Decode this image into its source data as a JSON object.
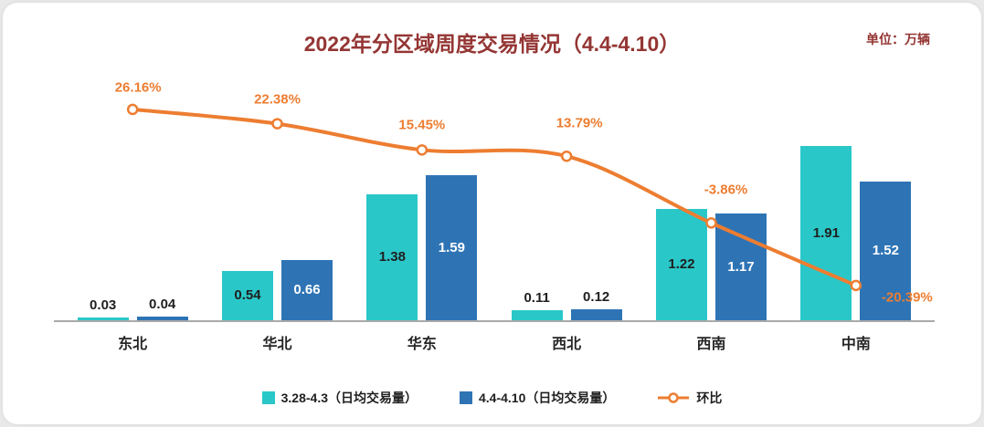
{
  "chart_data": {
    "type": "bar+line",
    "title": "2022年分区域周度交易情况（4.4-4.10）",
    "unit": "单位：万辆",
    "categories": [
      "东北",
      "华北",
      "华东",
      "西北",
      "西南",
      "中南"
    ],
    "series": [
      {
        "name": "3.28-4.3（日均交易量）",
        "type": "bar",
        "color": "#2AC7C9",
        "label_color": "#1f1f1f",
        "values": [
          0.03,
          0.54,
          1.38,
          0.11,
          1.22,
          1.91
        ]
      },
      {
        "name": "4.4-4.10（日均交易量）",
        "type": "bar",
        "color": "#2E74B5",
        "label_color": "#ffffff",
        "values": [
          0.04,
          0.66,
          1.59,
          0.12,
          1.17,
          1.52
        ]
      },
      {
        "name": "环比",
        "type": "line",
        "color": "#ED7D31",
        "values": [
          26.16,
          22.38,
          15.45,
          13.79,
          -3.86,
          -20.39
        ],
        "labels": [
          "26.16%",
          "22.38%",
          "15.45%",
          "13.79%",
          "-3.86%",
          "-20.39%"
        ],
        "label_offsets": [
          [
            6,
            -24
          ],
          [
            0,
            -27
          ],
          [
            0,
            -27
          ],
          [
            14,
            -36
          ],
          [
            16,
            -36
          ],
          [
            56,
            13
          ]
        ]
      }
    ],
    "ylim": [
      0,
      2
    ],
    "y2lim": [
      -25,
      30
    ],
    "grid": false,
    "legend_position": "bottom",
    "colors": {
      "title": "#943634",
      "axis": "#a9a9a9",
      "background": "#e9e9e9",
      "card": "#ffffff"
    }
  }
}
